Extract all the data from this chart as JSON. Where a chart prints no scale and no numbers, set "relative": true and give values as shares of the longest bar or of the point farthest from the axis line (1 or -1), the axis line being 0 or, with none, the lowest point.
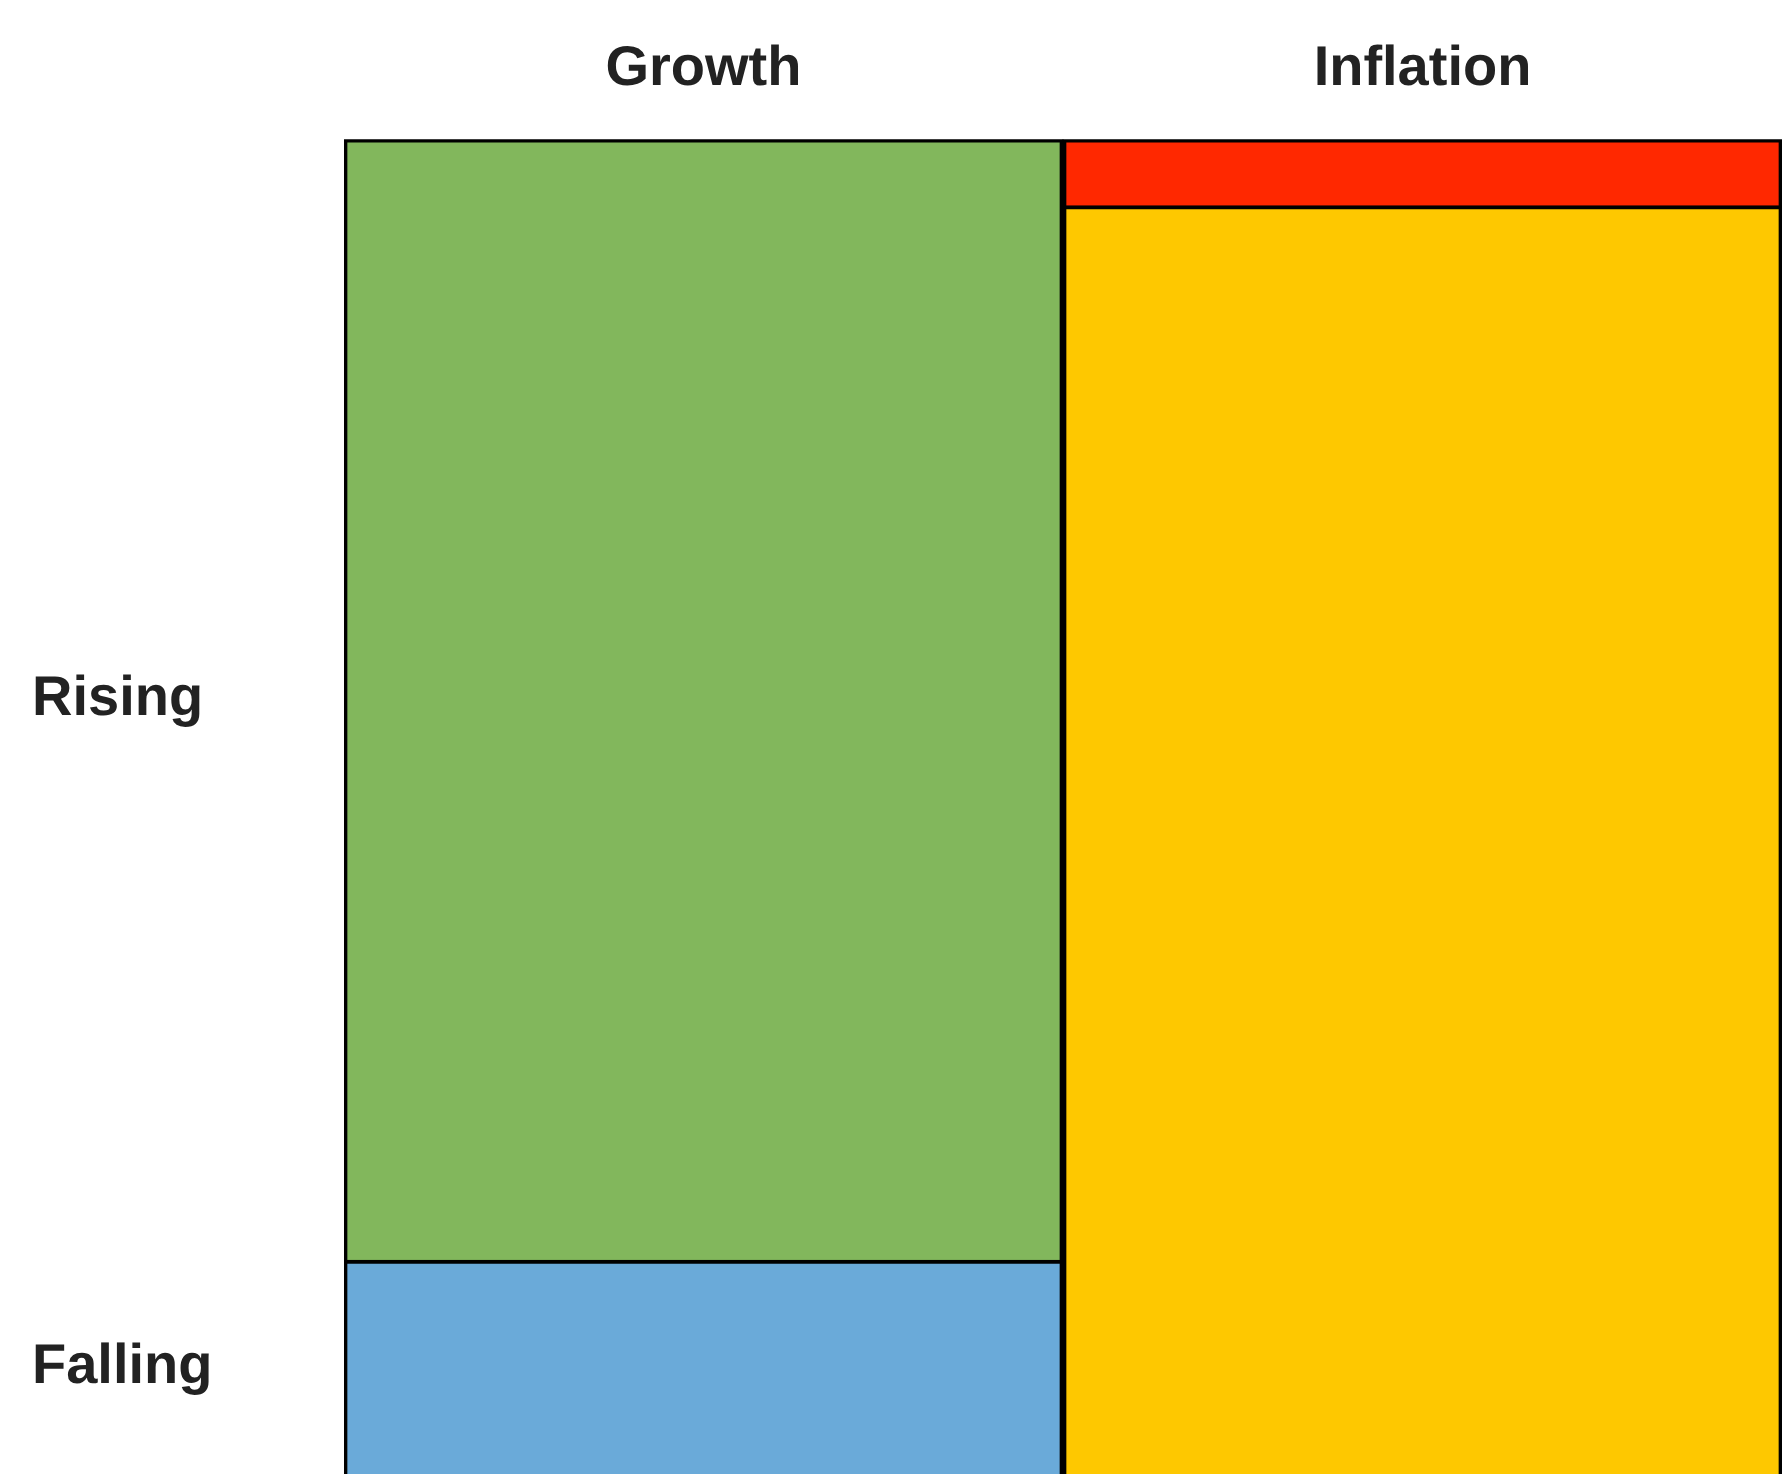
{
  "chart_data": {
    "type": "bar",
    "stacked": true,
    "relative": true,
    "categories": [
      "Growth",
      "Inflation"
    ],
    "series": [
      {
        "name": "Falling",
        "colors": [
          "#6aaad9",
          "#fec800"
        ],
        "values": [
          0.16,
          0.95
        ]
      },
      {
        "name": "Rising",
        "colors": [
          "#82b75c",
          "#ff2800"
        ],
        "values": [
          0.84,
          0.05
        ]
      }
    ],
    "legend": false
  }
}
